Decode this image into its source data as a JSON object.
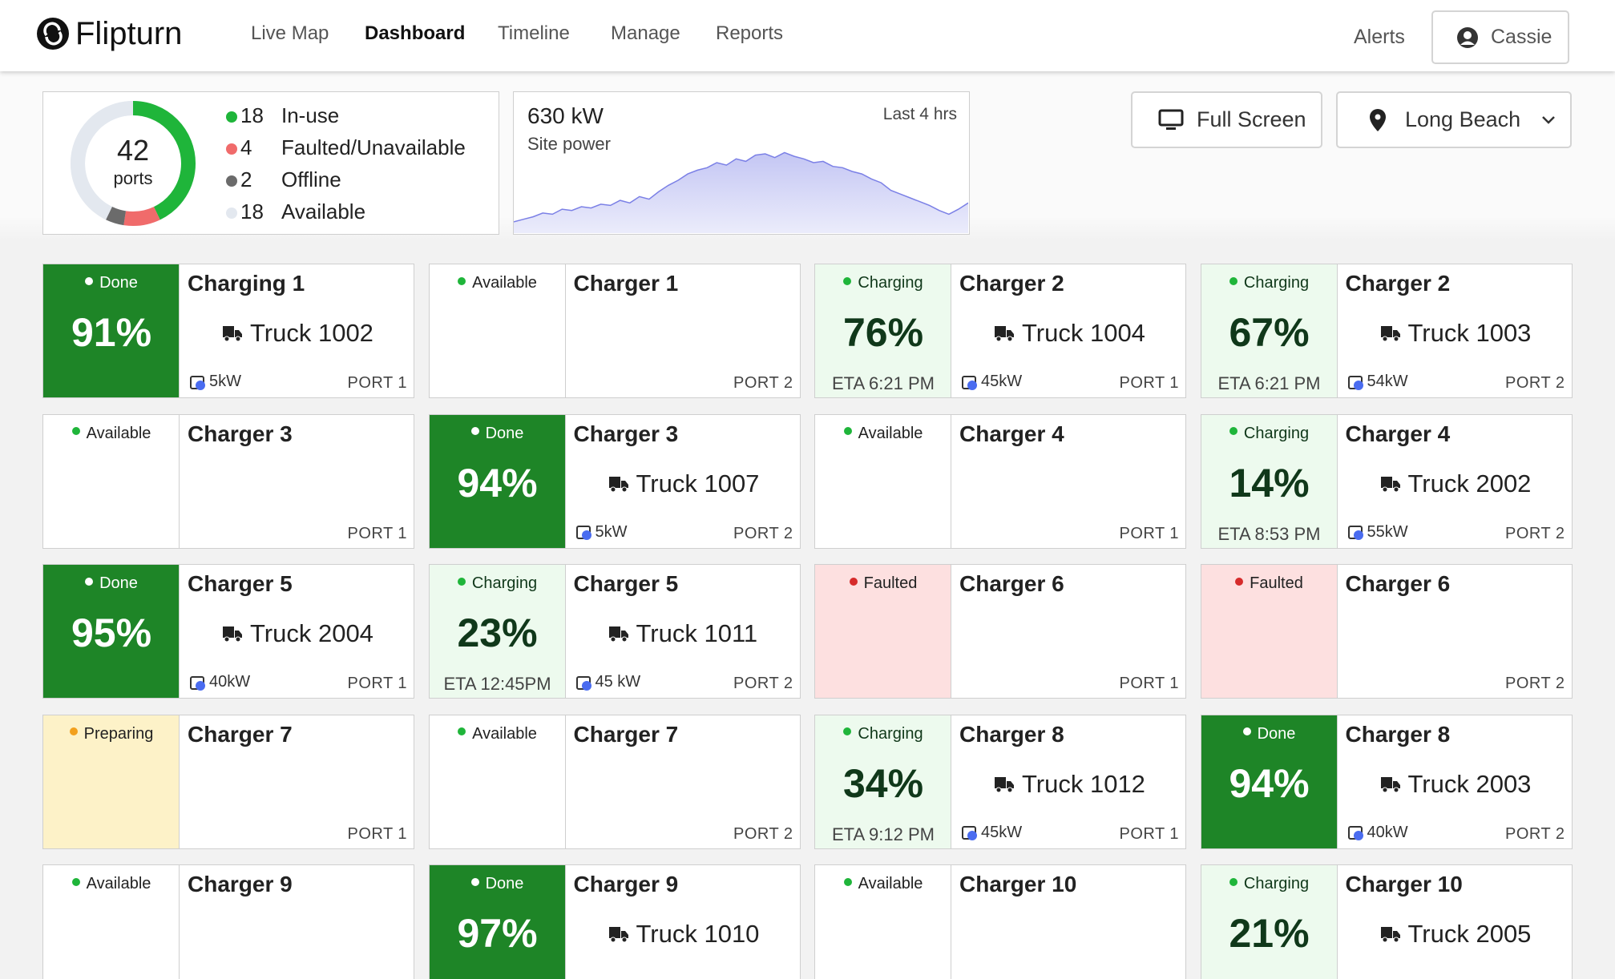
{
  "header": {
    "logo": "Flipturn",
    "nav": [
      "Live Map",
      "Dashboard",
      "Timeline",
      "Manage",
      "Reports"
    ],
    "active_index": 1,
    "alerts": "Alerts",
    "user": "Cassie"
  },
  "summary": {
    "total": 42,
    "unit": "ports",
    "track_color": "#e3e8ef",
    "legend": [
      {
        "count": 18,
        "label": "In-use",
        "color": "#1fb53a"
      },
      {
        "count": 4,
        "label": "Faulted/Unavailable",
        "color": "#f06b6b"
      },
      {
        "count": 2,
        "label": "Offline",
        "color": "#6b6b6b"
      },
      {
        "count": 18,
        "label": "Available",
        "color": "#e3e8ef"
      }
    ]
  },
  "power": {
    "value": "630 kW",
    "label": "Site power",
    "range": "Last 4 hrs",
    "chart": {
      "type": "area",
      "ylim": [
        0,
        700
      ],
      "color": "#7b80e6",
      "values": [
        90,
        110,
        130,
        160,
        150,
        190,
        180,
        210,
        200,
        230,
        220,
        260,
        240,
        290,
        270,
        330,
        380,
        420,
        470,
        500,
        520,
        560,
        540,
        590,
        570,
        620,
        630,
        600,
        640,
        610,
        590,
        560,
        570,
        530,
        520,
        490,
        470,
        430,
        400,
        340,
        310,
        280,
        250,
        220,
        180,
        150,
        190,
        240
      ]
    }
  },
  "buttons": {
    "fullscreen": "Full Screen",
    "location": "Long Beach"
  },
  "cards": [
    {
      "status": "Done",
      "dot": "#ffffff",
      "fill": "#1e8527",
      "ink": "#ffffff",
      "percent": "91%",
      "name": "Charging 1",
      "truck": "Truck 1002",
      "power": "5kW",
      "port": "PORT 1"
    },
    {
      "status": "Available",
      "dot": "#1fb53a",
      "fill": "#ffffff",
      "ink": "#222222",
      "name": "Charger 1",
      "port": "PORT 2"
    },
    {
      "status": "Charging",
      "dot": "#1fb53a",
      "fill": "#edfaee",
      "ink": "#10381a",
      "percent": "76%",
      "eta": "ETA 6:21 PM",
      "name": "Charger 2",
      "truck": "Truck 1004",
      "power": "45kW",
      "port": "PORT 1"
    },
    {
      "status": "Charging",
      "dot": "#1fb53a",
      "fill": "#edfaee",
      "ink": "#10381a",
      "percent": "67%",
      "eta": "ETA 6:21 PM",
      "name": "Charger 2",
      "truck": "Truck 1003",
      "power": "54kW",
      "port": "PORT 2"
    },
    {
      "status": "Available",
      "dot": "#1fb53a",
      "fill": "#ffffff",
      "ink": "#222222",
      "name": "Charger 3",
      "port": "PORT 1"
    },
    {
      "status": "Done",
      "dot": "#ffffff",
      "fill": "#1e8527",
      "ink": "#ffffff",
      "percent": "94%",
      "name": "Charger 3",
      "truck": "Truck 1007",
      "power": "5kW",
      "port": "PORT 2"
    },
    {
      "status": "Available",
      "dot": "#1fb53a",
      "fill": "#ffffff",
      "ink": "#222222",
      "name": "Charger 4",
      "port": "PORT 1"
    },
    {
      "status": "Charging",
      "dot": "#1fb53a",
      "fill": "#edfaee",
      "ink": "#10381a",
      "percent": "14%",
      "eta": "ETA 8:53 PM",
      "name": "Charger 4",
      "truck": "Truck 2002",
      "power": "55kW",
      "port": "PORT 2"
    },
    {
      "status": "Done",
      "dot": "#ffffff",
      "fill": "#1e8527",
      "ink": "#ffffff",
      "percent": "95%",
      "name": "Charger 5",
      "truck": "Truck 2004",
      "power": "40kW",
      "port": "PORT 1"
    },
    {
      "status": "Charging",
      "dot": "#1fb53a",
      "fill": "#edfaee",
      "ink": "#10381a",
      "percent": "23%",
      "eta": "ETA 12:45PM",
      "name": "Charger 5",
      "truck": "Truck 1011",
      "power": "45 kW",
      "port": "PORT 2"
    },
    {
      "status": "Faulted",
      "dot": "#d62b2b",
      "fill": "#fde0e0",
      "ink": "#222222",
      "name": "Charger 6",
      "port": "PORT 1"
    },
    {
      "status": "Faulted",
      "dot": "#d62b2b",
      "fill": "#fde0e0",
      "ink": "#222222",
      "name": "Charger 6",
      "port": "PORT 2"
    },
    {
      "status": "Preparing",
      "dot": "#f2a01d",
      "fill": "#fdf2c8",
      "ink": "#222222",
      "name": "Charger 7",
      "port": "PORT 1"
    },
    {
      "status": "Available",
      "dot": "#1fb53a",
      "fill": "#ffffff",
      "ink": "#222222",
      "name": "Charger 7",
      "port": "PORT 2"
    },
    {
      "status": "Charging",
      "dot": "#1fb53a",
      "fill": "#edfaee",
      "ink": "#10381a",
      "percent": "34%",
      "eta": "ETA 9:12 PM",
      "name": "Charger 8",
      "truck": "Truck 1012",
      "power": "45kW",
      "port": "PORT 1"
    },
    {
      "status": "Done",
      "dot": "#ffffff",
      "fill": "#1e8527",
      "ink": "#ffffff",
      "percent": "94%",
      "name": "Charger 8",
      "truck": "Truck 2003",
      "power": "40kW",
      "port": "PORT 2"
    },
    {
      "status": "Available",
      "dot": "#1fb53a",
      "fill": "#ffffff",
      "ink": "#222222",
      "name": "Charger 9"
    },
    {
      "status": "Done",
      "dot": "#ffffff",
      "fill": "#1e8527",
      "ink": "#ffffff",
      "percent": "97%",
      "name": "Charger 9",
      "truck": "Truck 1010"
    },
    {
      "status": "Available",
      "dot": "#1fb53a",
      "fill": "#ffffff",
      "ink": "#222222",
      "name": "Charger 10"
    },
    {
      "status": "Charging",
      "dot": "#1fb53a",
      "fill": "#edfaee",
      "ink": "#10381a",
      "percent": "21%",
      "name": "Charger 10",
      "truck": "Truck 2005"
    }
  ]
}
